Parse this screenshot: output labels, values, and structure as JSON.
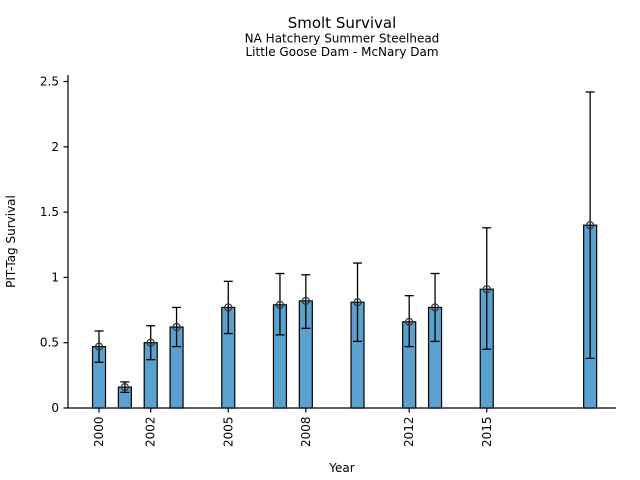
{
  "chart_data": {
    "type": "bar",
    "title": "Smolt Survival",
    "subtitle_line1": "NA Hatchery Summer Steelhead",
    "subtitle_line2": "Little Goose Dam - McNary Dam",
    "xlabel": "Year",
    "ylabel": "PIT-Tag Survival",
    "series": [
      {
        "name": "PIT-Tag Survival",
        "x": [
          2000,
          2001,
          2002,
          2003,
          2005,
          2007,
          2008,
          2010,
          2012,
          2013,
          2015,
          2019
        ],
        "values": [
          0.47,
          0.16,
          0.5,
          0.62,
          0.77,
          0.79,
          0.82,
          0.81,
          0.66,
          0.77,
          0.91,
          1.4
        ],
        "err_low": [
          0.35,
          0.12,
          0.37,
          0.47,
          0.57,
          0.56,
          0.61,
          0.51,
          0.47,
          0.51,
          0.45,
          0.38
        ],
        "err_high": [
          0.59,
          0.2,
          0.63,
          0.77,
          0.97,
          1.03,
          1.02,
          1.11,
          0.86,
          1.03,
          1.38,
          2.42
        ]
      }
    ],
    "xticks": [
      2000,
      2002,
      2005,
      2008,
      2012,
      2015
    ],
    "xtick_labels": [
      "2000",
      "2002",
      "2005",
      "2008",
      "2012",
      "2015"
    ],
    "ytick_values": [
      0,
      0.5,
      1,
      1.5,
      2,
      2.5
    ],
    "ytick_labels": [
      "0",
      "0.5",
      "1",
      "1.5",
      "2",
      "2.5"
    ],
    "xlim": [
      1998.8,
      2020.0
    ],
    "ylim": [
      0,
      2.55
    ],
    "bar_width_years": 0.5,
    "grid": false,
    "legend": "none",
    "marker": "open-circle",
    "xtick_label_rotation_deg": 90,
    "colors": {
      "bar_fill": "#5AA1CD",
      "bar_edge": "#000000",
      "error_bar": "#000000",
      "marker_edge": "#333333",
      "axis": "#000000",
      "text": "#000000",
      "background": "#ffffff"
    }
  }
}
